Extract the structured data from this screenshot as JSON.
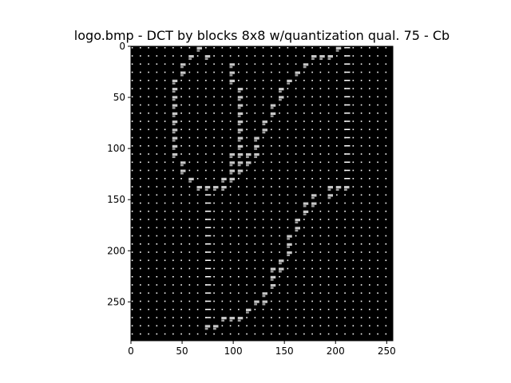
{
  "chart_data": {
    "type": "heatmap",
    "title": "logo.bmp - DCT by blocks 8x8  w/quantization qual. 75 - Cb",
    "xlabel": "",
    "ylabel": "",
    "x_ticks": [
      0,
      50,
      100,
      150,
      200,
      250
    ],
    "y_ticks": [
      0,
      50,
      100,
      150,
      200,
      250
    ],
    "xlim": [
      0,
      256
    ],
    "ylim": [
      0,
      288
    ],
    "y_inverted": true,
    "block_size": 8,
    "background_color": "#000000",
    "dc_marker_color": "#ffffff",
    "highlight_color": "#c8c8c8",
    "grid": false,
    "highlight_blocks": [
      {
        "x": 64,
        "y": 0
      },
      {
        "x": 200,
        "y": 0
      },
      {
        "x": 56,
        "y": 8
      },
      {
        "x": 72,
        "y": 8
      },
      {
        "x": 176,
        "y": 8
      },
      {
        "x": 184,
        "y": 8
      },
      {
        "x": 192,
        "y": 8
      },
      {
        "x": 48,
        "y": 16
      },
      {
        "x": 96,
        "y": 16
      },
      {
        "x": 168,
        "y": 16
      },
      {
        "x": 48,
        "y": 24
      },
      {
        "x": 96,
        "y": 24
      },
      {
        "x": 160,
        "y": 24
      },
      {
        "x": 40,
        "y": 32
      },
      {
        "x": 96,
        "y": 32
      },
      {
        "x": 152,
        "y": 32
      },
      {
        "x": 40,
        "y": 40
      },
      {
        "x": 104,
        "y": 40
      },
      {
        "x": 144,
        "y": 40
      },
      {
        "x": 40,
        "y": 48
      },
      {
        "x": 104,
        "y": 48
      },
      {
        "x": 144,
        "y": 48
      },
      {
        "x": 40,
        "y": 56
      },
      {
        "x": 104,
        "y": 56
      },
      {
        "x": 136,
        "y": 56
      },
      {
        "x": 40,
        "y": 64
      },
      {
        "x": 104,
        "y": 64
      },
      {
        "x": 136,
        "y": 64
      },
      {
        "x": 40,
        "y": 72
      },
      {
        "x": 104,
        "y": 72
      },
      {
        "x": 128,
        "y": 72
      },
      {
        "x": 40,
        "y": 80
      },
      {
        "x": 104,
        "y": 80
      },
      {
        "x": 128,
        "y": 80
      },
      {
        "x": 40,
        "y": 88
      },
      {
        "x": 104,
        "y": 88
      },
      {
        "x": 120,
        "y": 88
      },
      {
        "x": 40,
        "y": 96
      },
      {
        "x": 104,
        "y": 96
      },
      {
        "x": 120,
        "y": 96
      },
      {
        "x": 40,
        "y": 104
      },
      {
        "x": 96,
        "y": 104
      },
      {
        "x": 104,
        "y": 104
      },
      {
        "x": 112,
        "y": 104
      },
      {
        "x": 120,
        "y": 104
      },
      {
        "x": 48,
        "y": 112
      },
      {
        "x": 96,
        "y": 112
      },
      {
        "x": 104,
        "y": 112
      },
      {
        "x": 112,
        "y": 112
      },
      {
        "x": 48,
        "y": 120
      },
      {
        "x": 96,
        "y": 120
      },
      {
        "x": 104,
        "y": 120
      },
      {
        "x": 56,
        "y": 128
      },
      {
        "x": 88,
        "y": 128
      },
      {
        "x": 96,
        "y": 128
      },
      {
        "x": 64,
        "y": 136
      },
      {
        "x": 72,
        "y": 136
      },
      {
        "x": 80,
        "y": 136
      },
      {
        "x": 88,
        "y": 136
      },
      {
        "x": 192,
        "y": 136
      },
      {
        "x": 200,
        "y": 136
      },
      {
        "x": 208,
        "y": 136
      },
      {
        "x": 176,
        "y": 144
      },
      {
        "x": 192,
        "y": 144
      },
      {
        "x": 168,
        "y": 152
      },
      {
        "x": 176,
        "y": 152
      },
      {
        "x": 168,
        "y": 160
      },
      {
        "x": 160,
        "y": 168
      },
      {
        "x": 160,
        "y": 176
      },
      {
        "x": 152,
        "y": 184
      },
      {
        "x": 152,
        "y": 192
      },
      {
        "x": 152,
        "y": 200
      },
      {
        "x": 144,
        "y": 208
      },
      {
        "x": 136,
        "y": 216
      },
      {
        "x": 144,
        "y": 216
      },
      {
        "x": 136,
        "y": 224
      },
      {
        "x": 136,
        "y": 232
      },
      {
        "x": 128,
        "y": 240
      },
      {
        "x": 120,
        "y": 248
      },
      {
        "x": 128,
        "y": 248
      },
      {
        "x": 112,
        "y": 256
      },
      {
        "x": 104,
        "y": 264
      },
      {
        "x": 96,
        "y": 264
      },
      {
        "x": 88,
        "y": 264
      },
      {
        "x": 72,
        "y": 272
      },
      {
        "x": 80,
        "y": 272
      }
    ],
    "long_dc_columns": [
      {
        "x": 208,
        "y_from": 0,
        "y_to": 136
      },
      {
        "x": 72,
        "y_from": 144,
        "y_to": 272
      }
    ]
  }
}
